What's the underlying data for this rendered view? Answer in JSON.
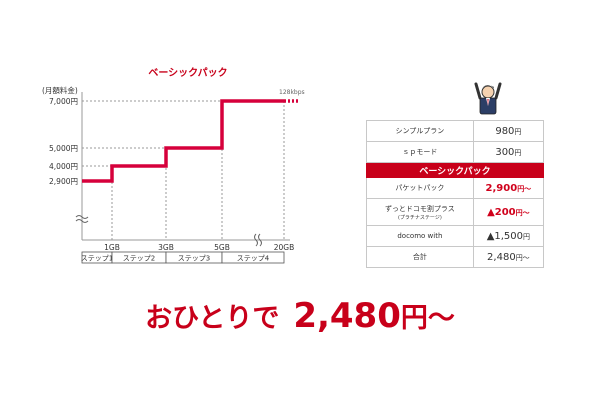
{
  "chart_data": {
    "type": "line",
    "title": "ベーシックパック",
    "ylabel": "(月額料金)",
    "y_ticks": [
      "7,000円",
      "5,000円",
      "4,000円",
      "2,900円"
    ],
    "x_ticks": [
      "1GB",
      "3GB",
      "5GB",
      "20GB"
    ],
    "steps": [
      "ステップ1",
      "ステップ2",
      "ステップ3",
      "ステップ4"
    ],
    "annotation": "128kbps",
    "series": [
      {
        "x": [
          0,
          1,
          1,
          3,
          3,
          5,
          5,
          20
        ],
        "y": [
          2900,
          2900,
          4000,
          4000,
          5000,
          5000,
          7000,
          7000
        ]
      }
    ],
    "color": "#d6003b"
  },
  "table": {
    "rows": [
      {
        "label": "シンプルプラン",
        "value": "980",
        "unit": "円"
      },
      {
        "label": "ｓｐモード",
        "value": "300",
        "unit": "円"
      }
    ],
    "header": "ベーシックパック",
    "rows2": [
      {
        "label": "パケットパック",
        "value": "2,900",
        "unit": "円～",
        "red": true
      },
      {
        "label": "ずっとドコモ割プラス",
        "sub": "(プラチナステージ)",
        "value": "▲200",
        "unit": "円～",
        "red": true
      },
      {
        "label": "docomo with",
        "value": "▲1,500",
        "unit": "円",
        "red": false
      },
      {
        "label": "合計",
        "value": "2,480",
        "unit": "円～",
        "red": false
      }
    ]
  },
  "tagline": {
    "prefix": "おひとりで",
    "amount": "2,480",
    "suffix": "円～"
  },
  "colors": {
    "accent": "#c8001a",
    "grid": "#999999"
  },
  "icons": {
    "person": "person-arms-up-icon"
  }
}
